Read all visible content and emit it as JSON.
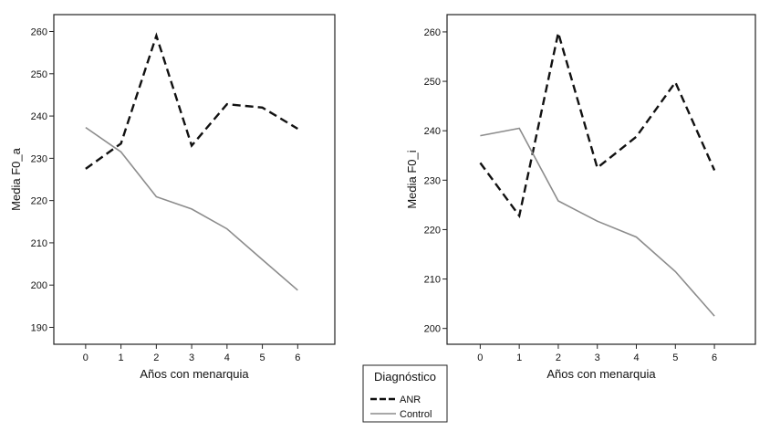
{
  "chart_data": [
    {
      "type": "line",
      "xlabel": "Años con menarquia",
      "ylabel": "Media F0_a",
      "categories": [
        "0",
        "1",
        "2",
        "3",
        "4",
        "5",
        "6"
      ],
      "ylim": [
        186,
        264
      ],
      "yticks": [
        190,
        200,
        210,
        220,
        230,
        240,
        250,
        260
      ],
      "grid": false,
      "series": [
        {
          "name": "ANR",
          "values": [
            227.5,
            233.5,
            259,
            233,
            242.8,
            242,
            237
          ],
          "color": "#111111",
          "dash": "dashed"
        },
        {
          "name": "Control",
          "values": [
            237.3,
            231.5,
            220.9,
            218,
            213.3,
            206,
            198.8
          ],
          "color": "#8c8c8c",
          "dash": "solid"
        }
      ]
    },
    {
      "type": "line",
      "xlabel": "Años con menarquia",
      "ylabel": "Media F0_i",
      "categories": [
        "0",
        "1",
        "2",
        "3",
        "4",
        "5",
        "6"
      ],
      "ylim": [
        196.8,
        263.5
      ],
      "yticks": [
        200,
        210,
        220,
        230,
        240,
        250,
        260
      ],
      "grid": false,
      "series": [
        {
          "name": "ANR",
          "values": [
            233.5,
            222.8,
            259.8,
            232.5,
            238.8,
            249.8,
            232
          ],
          "color": "#111111",
          "dash": "dashed"
        },
        {
          "name": "Control",
          "values": [
            239,
            240.5,
            225.8,
            221.7,
            218.5,
            211.5,
            202.5
          ],
          "color": "#8c8c8c",
          "dash": "solid"
        }
      ]
    }
  ],
  "legend": {
    "title": "Diagnóstico",
    "items": [
      {
        "label": "ANR",
        "style": "dashed",
        "color": "#111111"
      },
      {
        "label": "Control",
        "style": "solid",
        "color": "#8c8c8c"
      }
    ]
  }
}
